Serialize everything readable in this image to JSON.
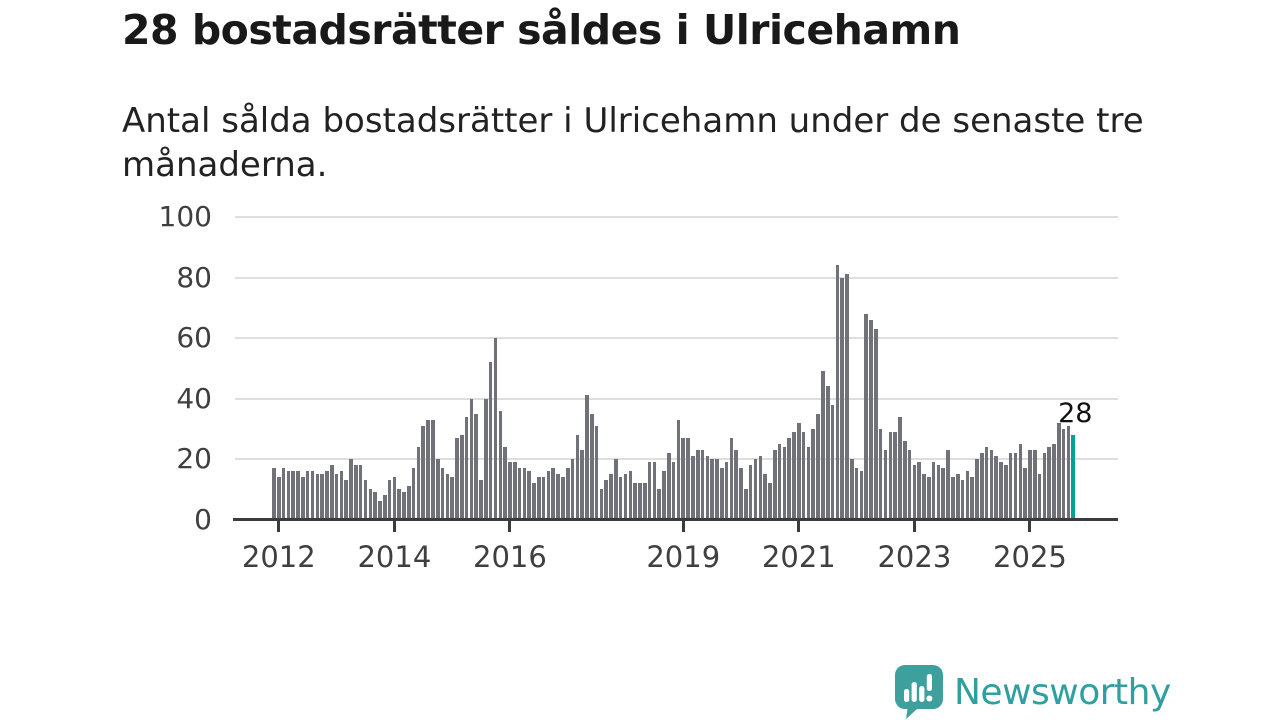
{
  "header": {
    "title": "28 bostadsrätter såldes i Ulricehamn",
    "subtitle": "Antal sålda bostadsrätter i Ulricehamn under de senaste tre månaderna."
  },
  "chart_data": {
    "type": "bar",
    "title": "28 bostadsrätter såldes i Ulricehamn",
    "subtitle": "Antal sålda bostadsrätter i Ulricehamn under de senaste tre månaderna.",
    "unit": "sålda bostadsrätter per 3-månadersperiod",
    "months_start": "2011-12",
    "months_end": "2025-10",
    "values": [
      17,
      14,
      17,
      16,
      16,
      16,
      14,
      16,
      16,
      15,
      15,
      16,
      18,
      15,
      16,
      13,
      20,
      18,
      18,
      13,
      10,
      9,
      6,
      8,
      13,
      14,
      10,
      9,
      11,
      17,
      24,
      31,
      33,
      33,
      20,
      17,
      15,
      14,
      27,
      28,
      34,
      40,
      35,
      13,
      40,
      52,
      60,
      36,
      24,
      19,
      19,
      17,
      17,
      16,
      12,
      14,
      14,
      16,
      17,
      15,
      14,
      17,
      20,
      28,
      23,
      41,
      35,
      31,
      10,
      13,
      15,
      20,
      14,
      15,
      16,
      12,
      12,
      12,
      19,
      19,
      10,
      16,
      22,
      19,
      33,
      27,
      27,
      21,
      23,
      23,
      21,
      20,
      20,
      17,
      19,
      27,
      23,
      17,
      10,
      18,
      20,
      21,
      15,
      12,
      23,
      25,
      24,
      27,
      29,
      32,
      29,
      24,
      30,
      35,
      49,
      44,
      38,
      84,
      80,
      81,
      20,
      17,
      16,
      68,
      66,
      63,
      30,
      23,
      29,
      29,
      34,
      26,
      23,
      18,
      19,
      15,
      14,
      19,
      18,
      17,
      23,
      14,
      15,
      13,
      16,
      14,
      20,
      22,
      24,
      23,
      21,
      19,
      18,
      22,
      22,
      25,
      17,
      23,
      23,
      15,
      22,
      24,
      25,
      32,
      30,
      31,
      28
    ],
    "highlight": {
      "month_index": 166,
      "value": 28,
      "label": "28"
    },
    "yticks": [
      0,
      20,
      40,
      60,
      80,
      100
    ],
    "ylim": [
      0,
      100
    ],
    "xticks": [
      {
        "year": "2012",
        "month_index": 1
      },
      {
        "year": "2014",
        "month_index": 25
      },
      {
        "year": "2016",
        "month_index": 49
      },
      {
        "year": "2019",
        "month_index": 85
      },
      {
        "year": "2021",
        "month_index": 109
      },
      {
        "year": "2023",
        "month_index": 133
      },
      {
        "year": "2025",
        "month_index": 157
      }
    ],
    "grid": "horizontal",
    "legend": "none",
    "colors": {
      "bar": "#71717a",
      "highlight": "#00a296",
      "grid": "#dedede",
      "axis": "#3b3b3b",
      "tick_text": "#3f3f3f"
    }
  },
  "logo": {
    "text": "Newsworthy",
    "icon": "newsworthy-chart-bubble-icon",
    "icon_color": "#3ea09d",
    "text_color": "#2f9fa0"
  }
}
